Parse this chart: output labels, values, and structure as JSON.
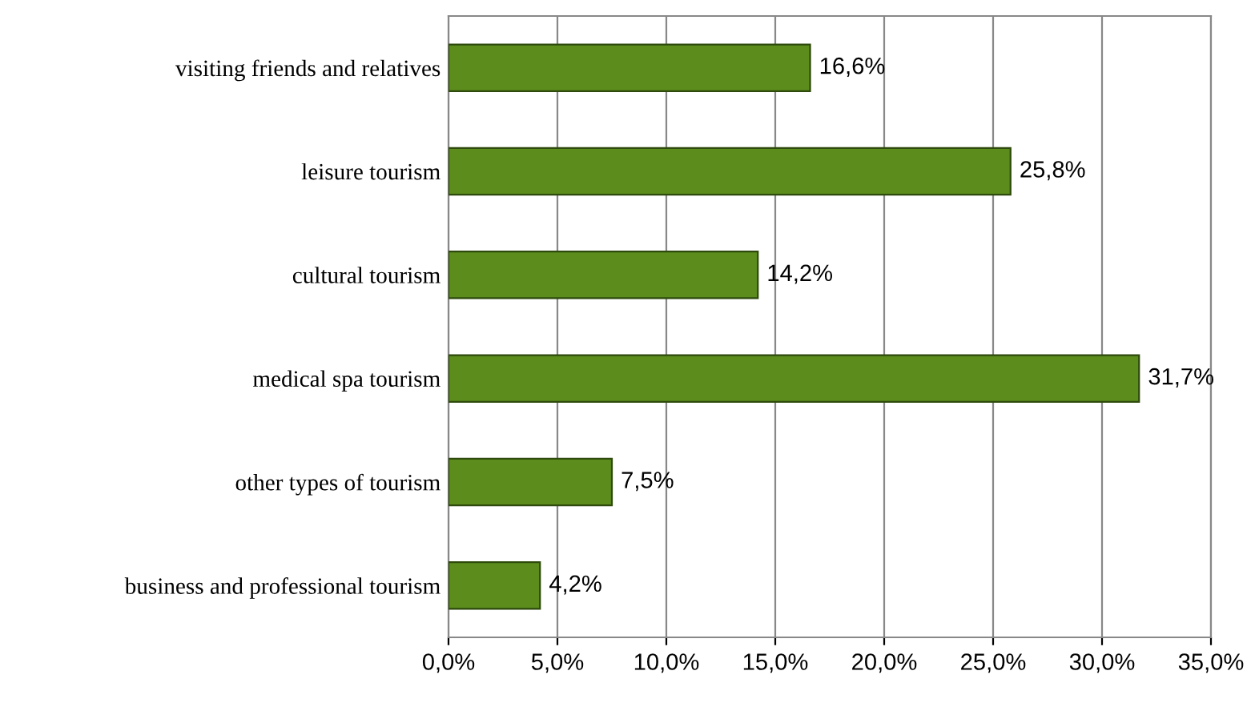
{
  "chart_data": {
    "type": "bar",
    "orientation": "horizontal",
    "categories": [
      "visiting friends and relatives",
      "leisure tourism",
      "cultural tourism",
      "medical spa tourism",
      "other types of tourism",
      "business and professional tourism"
    ],
    "values": [
      16.6,
      25.8,
      14.2,
      31.7,
      7.5,
      4.2
    ],
    "value_labels": [
      "16,6%",
      "25,8%",
      "14,2%",
      "31,7%",
      "7,5%",
      "4,2%"
    ],
    "color": "#5b8c1c",
    "xlim": [
      0,
      35
    ],
    "xticks": [
      {
        "value": 0,
        "label": "0,0%"
      },
      {
        "value": 5,
        "label": "5,0%"
      },
      {
        "value": 10,
        "label": "10,0%"
      },
      {
        "value": 15,
        "label": "15,0%"
      },
      {
        "value": 20,
        "label": "20,0%"
      },
      {
        "value": 25,
        "label": "25,0%"
      },
      {
        "value": 30,
        "label": "30,0%"
      },
      {
        "value": 35,
        "label": "35,0%"
      }
    ],
    "grid": "x",
    "legend": false
  }
}
